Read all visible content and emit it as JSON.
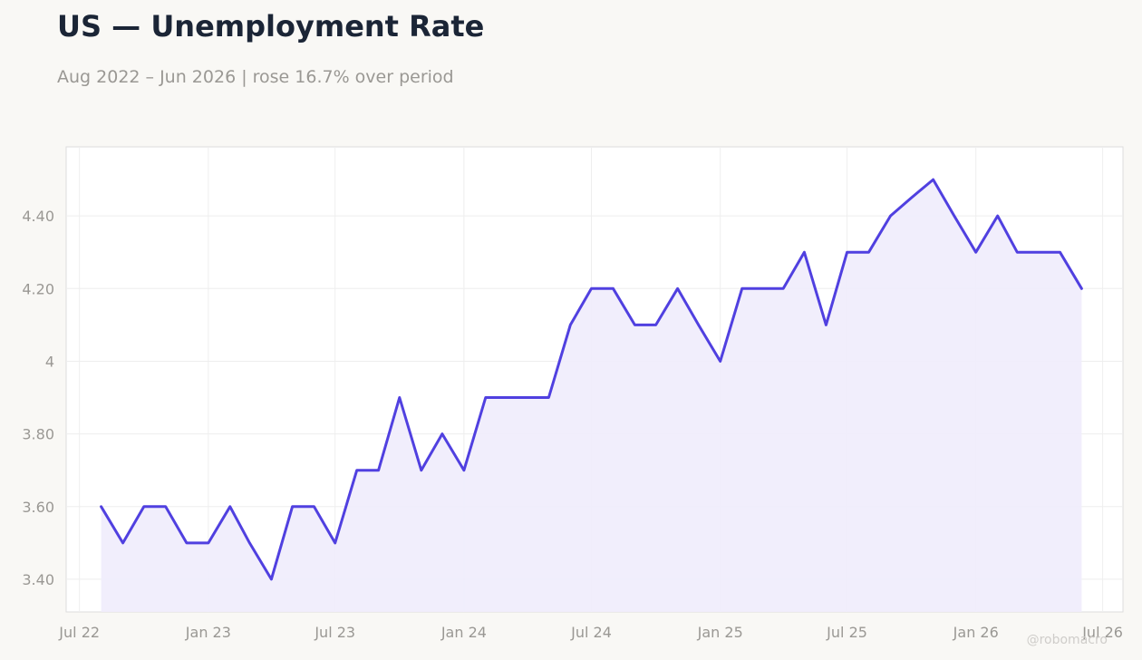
{
  "title": "US — Unemployment Rate",
  "subtitle": "Aug 2022 – Jun 2026 | rose 16.7% over period",
  "watermark": "@robomacro",
  "colors": {
    "line": "#5040e0",
    "fill": "#efecfc",
    "grid": "#eeeeee",
    "plot_bg": "#ffffff",
    "plot_border": "#dddddd"
  },
  "chart_data": {
    "type": "area",
    "title": "US — Unemployment Rate",
    "xlabel": "",
    "ylabel": "",
    "ylim": [
      3.31,
      4.59
    ],
    "xlim": [
      "2022-06-12",
      "2026-07-30"
    ],
    "grid": true,
    "x_ticks": [
      {
        "date": "2022-07-01",
        "label": "Jul 22"
      },
      {
        "date": "2023-01-01",
        "label": "Jan 23"
      },
      {
        "date": "2023-07-01",
        "label": "Jul 23"
      },
      {
        "date": "2024-01-01",
        "label": "Jan 24"
      },
      {
        "date": "2024-07-01",
        "label": "Jul 24"
      },
      {
        "date": "2025-01-01",
        "label": "Jan 25"
      },
      {
        "date": "2025-07-01",
        "label": "Jul 25"
      },
      {
        "date": "2026-01-01",
        "label": "Jan 26"
      },
      {
        "date": "2026-07-01",
        "label": "Jul 26"
      }
    ],
    "y_ticks": [
      {
        "value": 3.4,
        "label": "3.40"
      },
      {
        "value": 3.6,
        "label": "3.60"
      },
      {
        "value": 3.8,
        "label": "3.80"
      },
      {
        "value": 4.0,
        "label": "4"
      },
      {
        "value": 4.2,
        "label": "4.20"
      },
      {
        "value": 4.4,
        "label": "4.40"
      }
    ],
    "series": [
      {
        "x": [
          "2022-08-01",
          "2022-09-01",
          "2022-10-01",
          "2022-11-01",
          "2022-12-01",
          "2023-01-01",
          "2023-02-01",
          "2023-03-01",
          "2023-04-01",
          "2023-05-01",
          "2023-06-01",
          "2023-07-01",
          "2023-08-01",
          "2023-09-01",
          "2023-10-01",
          "2023-11-01",
          "2023-12-01",
          "2024-01-01",
          "2024-02-01",
          "2024-03-01",
          "2024-04-01",
          "2024-05-01",
          "2024-06-01",
          "2024-07-01",
          "2024-08-01",
          "2024-09-01",
          "2024-10-01",
          "2024-11-01",
          "2024-12-01",
          "2025-01-01",
          "2025-02-01",
          "2025-03-01",
          "2025-04-01",
          "2025-05-01",
          "2025-06-01",
          "2025-07-01",
          "2025-08-01",
          "2025-09-01",
          "2025-10-01",
          "2025-11-01",
          "2025-12-01",
          "2026-01-01",
          "2026-02-01",
          "2026-03-01",
          "2026-04-01",
          "2026-05-01",
          "2026-06-01"
        ],
        "values": [
          3.6,
          3.5,
          3.6,
          3.6,
          3.5,
          3.5,
          3.6,
          3.5,
          3.4,
          3.6,
          3.6,
          3.5,
          3.7,
          3.7,
          3.9,
          3.7,
          3.8,
          3.7,
          3.9,
          3.9,
          3.9,
          3.9,
          4.1,
          4.2,
          4.2,
          4.1,
          4.1,
          4.2,
          4.1,
          4.0,
          4.2,
          4.2,
          4.2,
          4.3,
          4.1,
          4.3,
          4.3,
          4.4,
          4.45,
          4.5,
          4.4,
          4.3,
          4.4,
          4.3,
          4.3,
          4.3,
          4.2
        ]
      }
    ]
  }
}
